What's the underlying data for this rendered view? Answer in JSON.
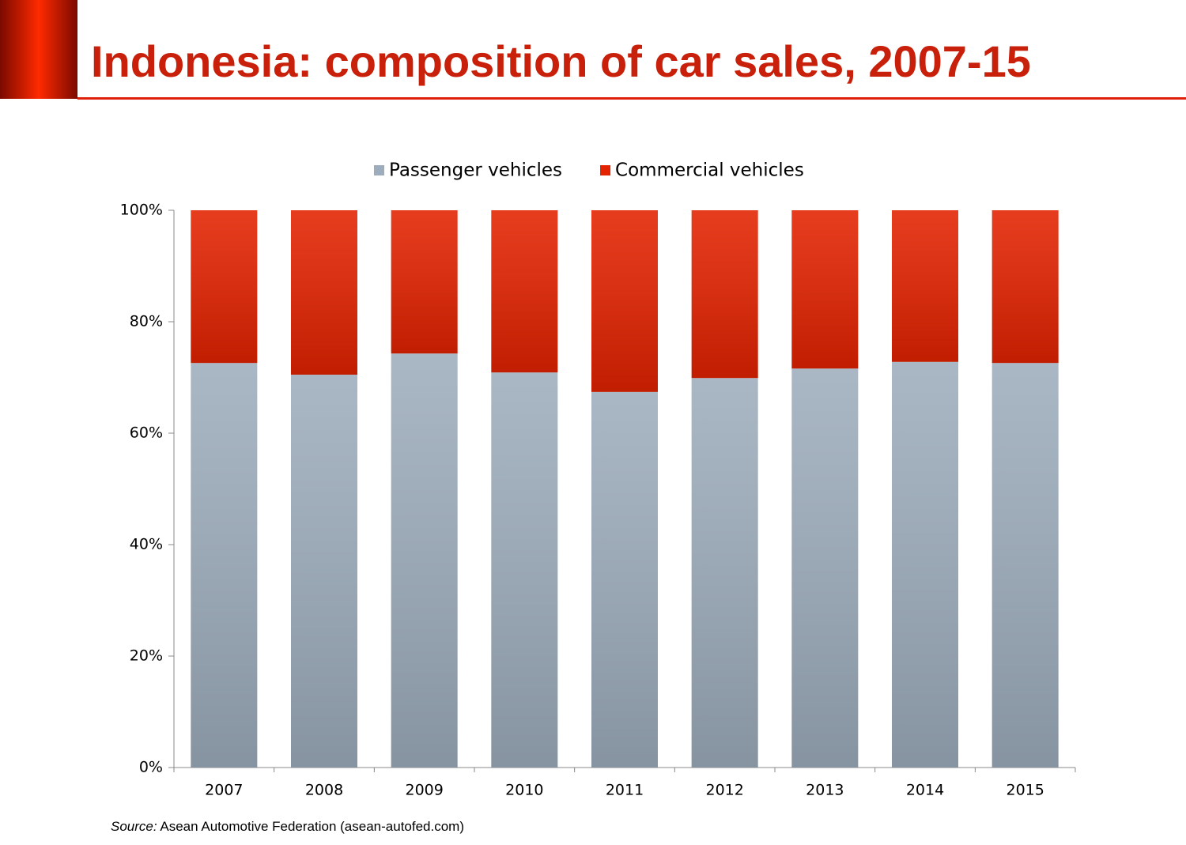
{
  "chart_data": {
    "type": "stacked_bar",
    "title": "Indonesia: composition of car sales, 2007-15",
    "source_label": "Source:",
    "source_text": "Asean Automotive Federation (asean-autofed.com)",
    "categories": [
      "2007",
      "2008",
      "2009",
      "2010",
      "2011",
      "2012",
      "2013",
      "2014",
      "2015"
    ],
    "series": [
      {
        "name": "Passenger vehicles",
        "color": "#9eadbd",
        "values": [
          72.6,
          70.5,
          74.3,
          70.9,
          67.4,
          69.9,
          71.6,
          72.8,
          72.6
        ]
      },
      {
        "name": "Commercial vehicles",
        "color": "#e32200",
        "values": [
          27.4,
          29.5,
          25.7,
          29.1,
          32.6,
          30.1,
          28.4,
          27.2,
          27.4
        ]
      }
    ],
    "ylim": [
      0,
      100
    ],
    "yticks": [
      {
        "value": 0,
        "label": "0%"
      },
      {
        "value": 20,
        "label": "20%"
      },
      {
        "value": 40,
        "label": "40%"
      },
      {
        "value": 60,
        "label": "60%"
      },
      {
        "value": 80,
        "label": "80%"
      },
      {
        "value": 100,
        "label": "100%"
      }
    ],
    "legend": "top"
  }
}
